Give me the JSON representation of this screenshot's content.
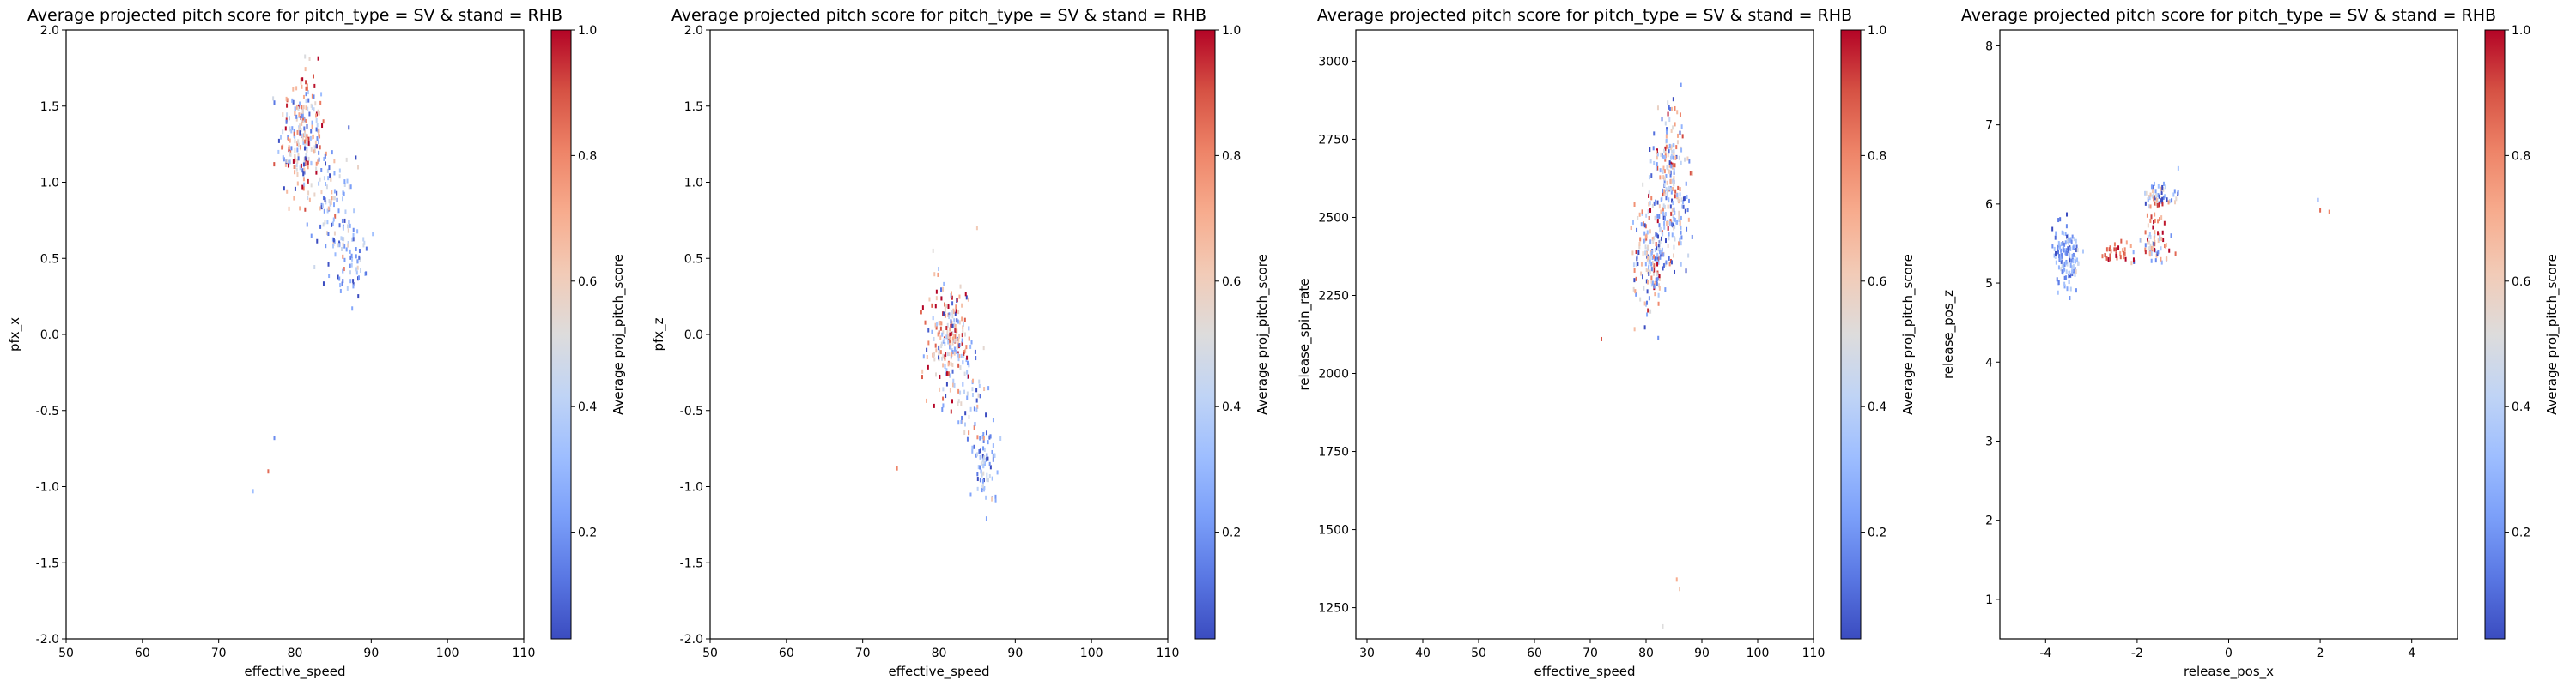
{
  "figure": {
    "colormap": "coolwarm",
    "cmap_colors": [
      "#3b4cc0",
      "#5977e3",
      "#7b9ff9",
      "#9ebeff",
      "#c0d4f5",
      "#dddcdc",
      "#f2cbb7",
      "#f7ac8e",
      "#ee8468",
      "#d65244",
      "#b40426"
    ]
  },
  "chart_data": [
    {
      "type": "scatter",
      "title": "Average projected pitch score for pitch_type = SV & stand = RHB",
      "xlabel": "effective_speed",
      "ylabel": "pfx_x",
      "xlim": [
        50,
        110
      ],
      "ylim": [
        -2.0,
        2.0
      ],
      "xticks": [
        "50",
        "60",
        "70",
        "80",
        "90",
        "100",
        "110"
      ],
      "yticks": [
        "-2.0",
        "-1.5",
        "-1.0",
        "-0.5",
        "0.0",
        "0.5",
        "1.0",
        "1.5",
        "2.0"
      ],
      "grid": false,
      "colorbar": {
        "label": "Average proj_pitch_score",
        "range": [
          0.03,
          1.0
        ],
        "ticks": [
          "0.2",
          "0.4",
          "0.6",
          "0.8",
          "1.0"
        ]
      },
      "clusters": [
        {
          "cx": 81,
          "cy": 1.3,
          "sx": 1.5,
          "sy": 0.22,
          "n": 230,
          "v": 0.55,
          "vs": 0.3
        },
        {
          "cx": 85,
          "cy": 0.8,
          "sx": 1.5,
          "sy": 0.2,
          "n": 110,
          "v": 0.3,
          "vs": 0.22
        },
        {
          "cx": 87.5,
          "cy": 0.5,
          "sx": 0.9,
          "sy": 0.12,
          "n": 50,
          "v": 0.25,
          "vs": 0.15
        }
      ],
      "outliers": [
        {
          "x": 74.5,
          "y": -1.03,
          "v": 0.3
        },
        {
          "x": 76.5,
          "y": -0.9,
          "v": 0.85
        },
        {
          "x": 77.3,
          "y": -0.68,
          "v": 0.15
        }
      ]
    },
    {
      "type": "scatter",
      "title": "Average projected pitch score for pitch_type = SV & stand = RHB",
      "xlabel": "effective_speed",
      "ylabel": "pfx_z",
      "xlim": [
        50,
        110
      ],
      "ylim": [
        -2.0,
        2.0
      ],
      "xticks": [
        "50",
        "60",
        "70",
        "80",
        "90",
        "100",
        "110"
      ],
      "yticks": [
        "-2.0",
        "-1.5",
        "-1.0",
        "-0.5",
        "0.0",
        "0.5",
        "1.0",
        "1.5",
        "2.0"
      ],
      "grid": false,
      "colorbar": {
        "label": "Average proj_pitch_score",
        "range": [
          0.03,
          1.0
        ],
        "ticks": [
          "0.2",
          "0.4",
          "0.6",
          "0.8",
          "1.0"
        ]
      },
      "clusters": [
        {
          "cx": 81.5,
          "cy": -0.05,
          "sx": 1.5,
          "sy": 0.2,
          "n": 230,
          "v": 0.55,
          "vs": 0.3
        },
        {
          "cx": 86,
          "cy": -0.85,
          "sx": 1.0,
          "sy": 0.13,
          "n": 70,
          "v": 0.25,
          "vs": 0.15
        },
        {
          "cx": 84.5,
          "cy": -0.5,
          "sx": 1.2,
          "sy": 0.15,
          "n": 40,
          "v": 0.4,
          "vs": 0.25
        }
      ],
      "outliers": [
        {
          "x": 74.5,
          "y": -0.88,
          "v": 0.8
        },
        {
          "x": 85,
          "y": 0.7,
          "v": 0.6
        }
      ]
    },
    {
      "type": "scatter",
      "title": "Average projected pitch score for pitch_type = SV & stand = RHB",
      "xlabel": "effective_speed",
      "ylabel": "release_spin_rate",
      "xlim": [
        28,
        110
      ],
      "ylim": [
        1150,
        3100
      ],
      "xticks": [
        "30",
        "40",
        "50",
        "60",
        "70",
        "80",
        "90",
        "100",
        "110"
      ],
      "yticks": [
        "1250",
        "1500",
        "1750",
        "2000",
        "2250",
        "2500",
        "2750",
        "3000"
      ],
      "grid": false,
      "colorbar": {
        "label": "Average proj_pitch_score",
        "range": [
          0.03,
          1.0
        ],
        "ticks": [
          "0.2",
          "0.4",
          "0.6",
          "0.8",
          "1.0"
        ]
      },
      "clusters": [
        {
          "cx": 81,
          "cy": 2380,
          "sx": 1.5,
          "sy": 100,
          "n": 180,
          "v": 0.5,
          "vs": 0.3
        },
        {
          "cx": 84,
          "cy": 2650,
          "sx": 1.5,
          "sy": 110,
          "n": 170,
          "v": 0.45,
          "vs": 0.3
        },
        {
          "cx": 85.5,
          "cy": 2500,
          "sx": 1.3,
          "sy": 90,
          "n": 60,
          "v": 0.3,
          "vs": 0.2
        }
      ],
      "outliers": [
        {
          "x": 72,
          "y": 2110,
          "v": 0.9
        },
        {
          "x": 85.5,
          "y": 1340,
          "v": 0.7
        },
        {
          "x": 86,
          "y": 1310,
          "v": 0.6
        },
        {
          "x": 83,
          "y": 1190,
          "v": 0.5
        }
      ]
    },
    {
      "type": "scatter",
      "title": "Average projected pitch score for pitch_type = SV & stand = RHB",
      "xlabel": "release_pos_x",
      "ylabel": "release_pos_z",
      "xlim": [
        -5,
        5
      ],
      "ylim": [
        0.5,
        8.2
      ],
      "xticks": [
        "-4",
        "-2",
        "0",
        "2",
        "4"
      ],
      "yticks": [
        "1",
        "2",
        "3",
        "4",
        "5",
        "6",
        "7",
        "8"
      ],
      "grid": false,
      "colorbar": {
        "label": "Average proj_pitch_score",
        "range": [
          0.03,
          1.0
        ],
        "ticks": [
          "0.2",
          "0.4",
          "0.6",
          "0.8",
          "1.0"
        ]
      },
      "clusters": [
        {
          "cx": -3.55,
          "cy": 5.35,
          "sx": 0.15,
          "sy": 0.18,
          "n": 130,
          "v": 0.22,
          "vs": 0.15
        },
        {
          "cx": -2.5,
          "cy": 5.4,
          "sx": 0.2,
          "sy": 0.05,
          "n": 30,
          "v": 0.85,
          "vs": 0.1
        },
        {
          "cx": -1.5,
          "cy": 6.12,
          "sx": 0.2,
          "sy": 0.08,
          "n": 50,
          "v": 0.3,
          "vs": 0.2
        },
        {
          "cx": -1.65,
          "cy": 5.45,
          "sx": 0.25,
          "sy": 0.12,
          "n": 60,
          "v": 0.5,
          "vs": 0.3
        },
        {
          "cx": -1.55,
          "cy": 5.85,
          "sx": 0.1,
          "sy": 0.12,
          "n": 25,
          "v": 0.8,
          "vs": 0.15
        }
      ],
      "outliers": [
        {
          "x": 1.95,
          "y": 6.05,
          "v": 0.2
        },
        {
          "x": 2.0,
          "y": 5.92,
          "v": 0.85
        },
        {
          "x": 2.2,
          "y": 5.9,
          "v": 0.8
        },
        {
          "x": -1.1,
          "y": 6.45,
          "v": 0.3
        }
      ]
    }
  ]
}
